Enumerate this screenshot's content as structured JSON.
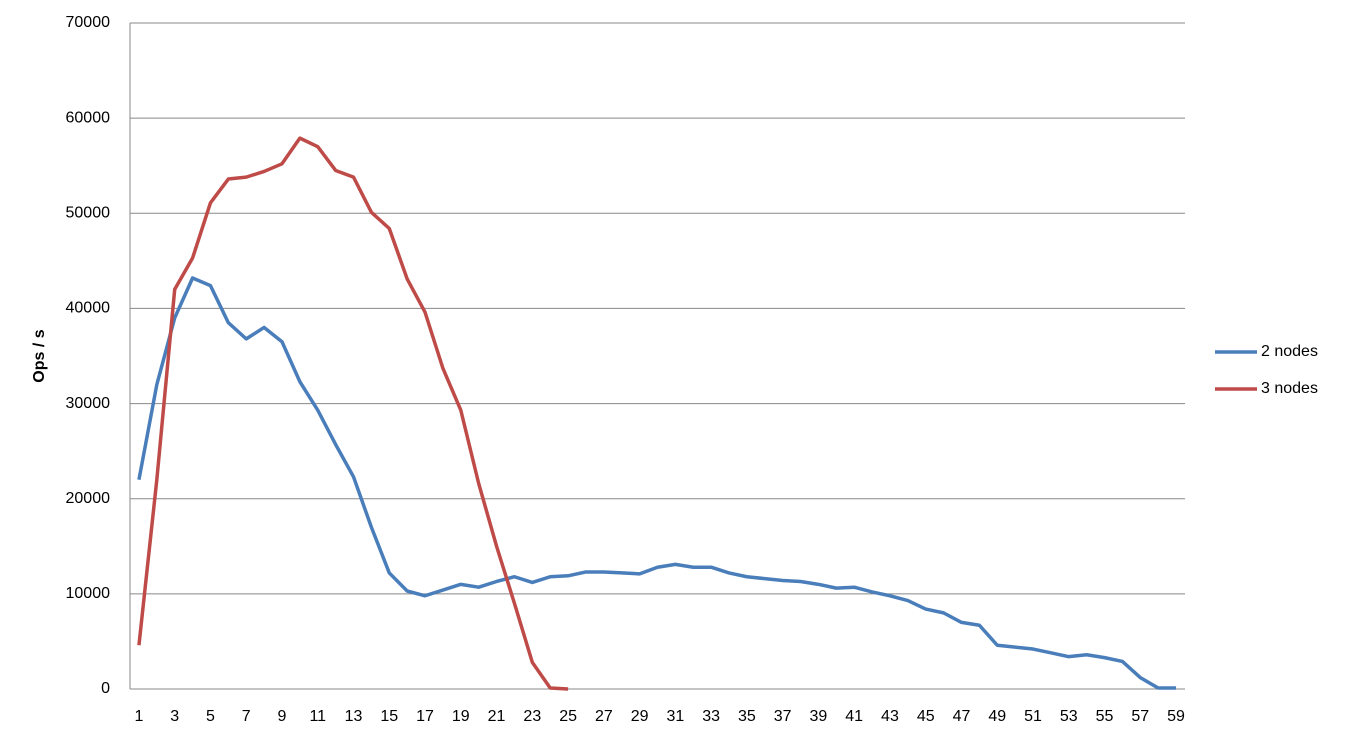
{
  "chart_data": {
    "type": "line",
    "y_label": "Ops / s",
    "categories": [
      1,
      null,
      3,
      null,
      5,
      null,
      7,
      null,
      9,
      null,
      11,
      null,
      13,
      null,
      15,
      null,
      17,
      null,
      19,
      null,
      21,
      null,
      23,
      null,
      25,
      null,
      27,
      null,
      29,
      null,
      31,
      null,
      33,
      null,
      35,
      null,
      37,
      null,
      39,
      null,
      41,
      null,
      43,
      null,
      45,
      null,
      47,
      null,
      49,
      null,
      51,
      null,
      53,
      null,
      55,
      null,
      57,
      null,
      59
    ],
    "series": [
      {
        "name": "2 nodes",
        "color": "#4a7ebb",
        "values": [
          22000,
          32000,
          39000,
          43200,
          42400,
          38500,
          36800,
          38000,
          36500,
          32300,
          29300,
          25700,
          22300,
          17000,
          12200,
          10300,
          9800,
          10400,
          11000,
          10700,
          11300,
          11800,
          11200,
          11800,
          11900,
          12300,
          12300,
          12200,
          12100,
          12800,
          13100,
          12800,
          12800,
          12200,
          11800,
          11600,
          11400,
          11300,
          11000,
          10600,
          10700,
          10200,
          9800,
          9300,
          8400,
          8000,
          7000,
          6700,
          4600,
          4400,
          4200,
          3800,
          3400,
          3600,
          3300,
          2900,
          1200,
          100,
          100
        ]
      },
      {
        "name": "3 nodes",
        "color": "#be4b48",
        "values": [
          4600,
          22000,
          42000,
          45300,
          51100,
          53600,
          53800,
          54400,
          55200,
          57900,
          57000,
          54500,
          53800,
          50100,
          48400,
          43100,
          39600,
          33700,
          29300,
          21600,
          15000,
          9000,
          2800,
          100,
          0,
          null,
          null,
          null,
          null,
          null,
          null,
          null,
          null,
          null,
          null,
          null,
          null,
          null,
          null,
          null,
          null,
          null,
          null,
          null,
          null,
          null,
          null,
          null,
          null,
          null,
          null,
          null,
          null,
          null,
          null,
          null,
          null,
          null,
          null
        ]
      }
    ],
    "ylim": [
      0,
      70000
    ],
    "yticks": [
      0,
      10000,
      20000,
      30000,
      40000,
      50000,
      60000,
      70000
    ],
    "grid": true,
    "legend": "right"
  }
}
